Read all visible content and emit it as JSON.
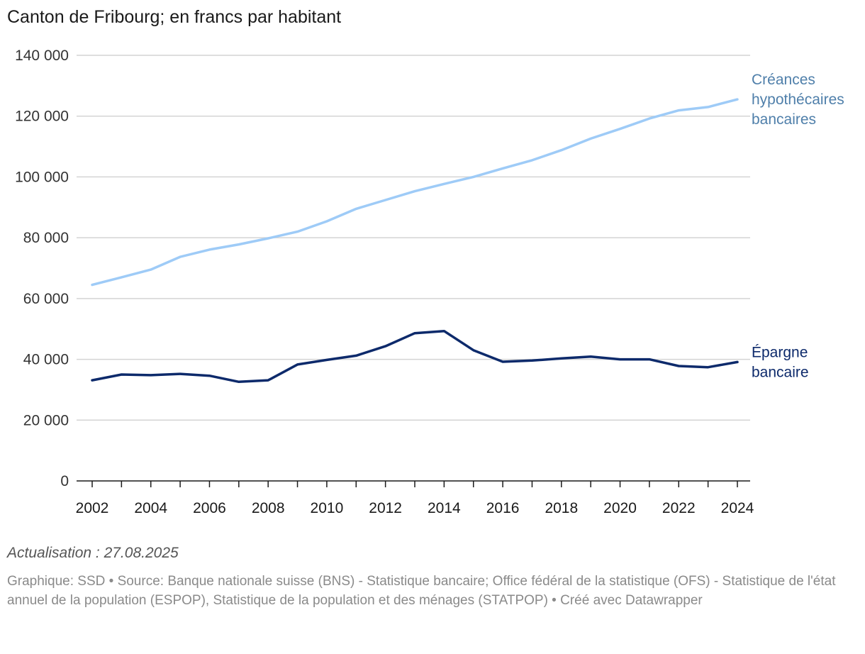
{
  "chart_data": {
    "type": "line",
    "title": "Canton de Fribourg; en francs par habitant",
    "xlabel": "",
    "ylabel": "",
    "ylim": [
      0,
      140000
    ],
    "y_ticks": [
      0,
      20000,
      40000,
      60000,
      80000,
      100000,
      120000,
      140000
    ],
    "y_tick_labels": [
      "0",
      "20 000",
      "40 000",
      "60 000",
      "80 000",
      "100 000",
      "120 000",
      "140 000"
    ],
    "x": [
      2002,
      2003,
      2004,
      2005,
      2006,
      2007,
      2008,
      2009,
      2010,
      2011,
      2012,
      2013,
      2014,
      2015,
      2016,
      2017,
      2018,
      2019,
      2020,
      2021,
      2022,
      2023,
      2024
    ],
    "x_tick_labels": [
      "2002",
      "2004",
      "2006",
      "2008",
      "2010",
      "2012",
      "2014",
      "2016",
      "2018",
      "2020",
      "2022",
      "2024"
    ],
    "grid": true,
    "series": [
      {
        "name": "Créances hypothécaires bancaires",
        "label_lines": [
          "Créances",
          "hypothécaires",
          "bancaires"
        ],
        "color": "#9ecbf7",
        "label_color": "#4f7faa",
        "values": [
          64500,
          67000,
          69500,
          73700,
          76100,
          77800,
          79800,
          82000,
          85400,
          89500,
          92400,
          95300,
          97700,
          100000,
          102800,
          105500,
          108800,
          112600,
          115800,
          119200,
          121900,
          123000,
          125500
        ]
      },
      {
        "name": "Épargne bancaire",
        "label_lines": [
          "Épargne",
          "bancaire"
        ],
        "color": "#0d2a6b",
        "label_color": "#0d2a6b",
        "values": [
          33100,
          35000,
          34800,
          35200,
          34600,
          32600,
          33100,
          38300,
          39800,
          41200,
          44300,
          48600,
          49300,
          43000,
          39200,
          39600,
          40300,
          40900,
          40000,
          40000,
          37800,
          37400,
          39100
        ]
      }
    ]
  },
  "footer": {
    "update": "Actualisation : 27.08.2025",
    "notes": "Graphique: SSD • Source: Banque nationale suisse (BNS) - Statistique bancaire; Office fédéral de la statistique (OFS) - Statistique de l'état annuel de la population (ESPOP), Statistique de la population et des ménages (STATPOP) • Créé avec Datawrapper"
  }
}
